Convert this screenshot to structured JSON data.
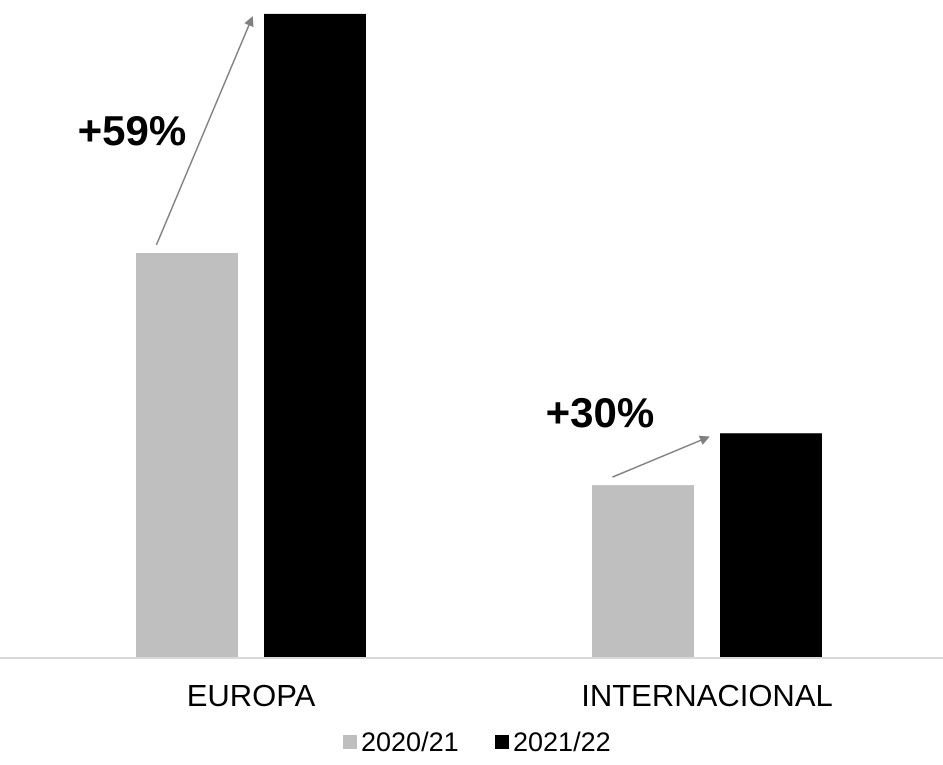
{
  "chart_data": {
    "type": "bar",
    "title": "",
    "xlabel": "",
    "ylabel": "",
    "categories": [
      "EUROPA",
      "INTERNACIONAL"
    ],
    "series": [
      {
        "name": "2020/21",
        "color": "#bfbfbf",
        "values": [
          41,
          17.5
        ]
      },
      {
        "name": "2021/22",
        "color": "#000000",
        "values": [
          65.2,
          22.75
        ]
      }
    ],
    "ylim": [
      0,
      66
    ],
    "grid": false,
    "legend_position": "bottom",
    "annotations": [
      {
        "category_index": 0,
        "text": "+59%"
      },
      {
        "category_index": 1,
        "text": "+30%"
      }
    ],
    "arrow_color": "#808080"
  }
}
